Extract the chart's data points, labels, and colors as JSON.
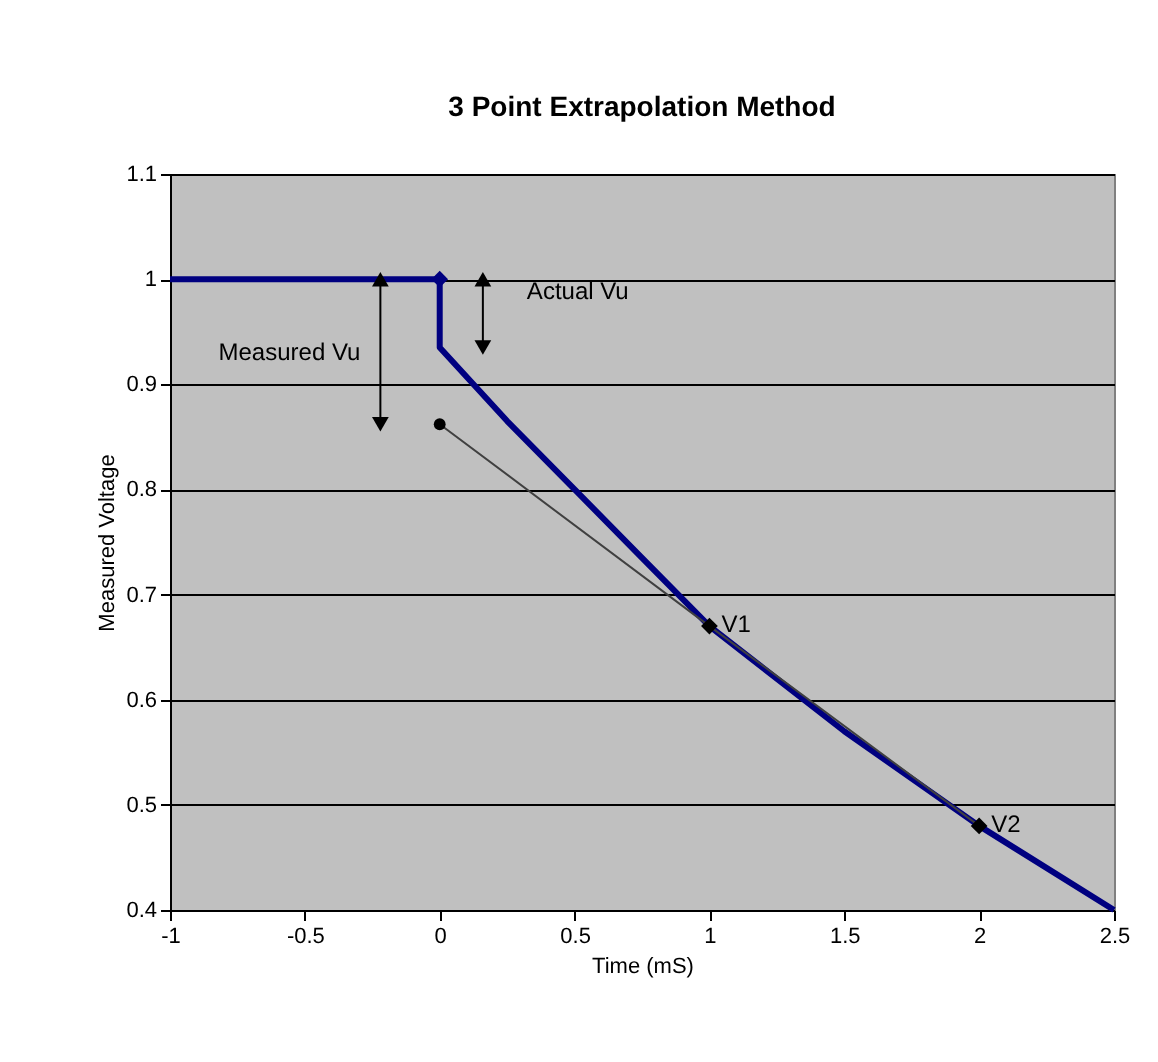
{
  "chart_data": {
    "type": "line",
    "title": "3 Point Extrapolation Method",
    "xlabel": "Time (mS)",
    "ylabel": "Measured Voltage",
    "xlim": [
      -1,
      2.5
    ],
    "xticks": [
      -1,
      -0.5,
      0,
      0.5,
      1,
      1.5,
      2,
      2.5
    ],
    "ylim": [
      0.4,
      1.1
    ],
    "yticks": [
      0.4,
      0.5,
      0.6,
      0.7,
      0.8,
      0.9,
      1,
      1.1
    ],
    "grid": "y",
    "series": [
      {
        "type": "line",
        "color": "#000080",
        "marker": "none",
        "x": [
          -1,
          0,
          0,
          0.25,
          0.5,
          0.75,
          1,
          1.5,
          2,
          2.5
        ],
        "values": [
          1,
          1,
          0.935,
          0.865,
          0.8,
          0.735,
          0.67,
          0.57,
          0.48,
          0.4
        ]
      },
      {
        "type": "scatter",
        "color": "#000080",
        "marker": "diamond",
        "x": [
          0
        ],
        "values": [
          1
        ]
      },
      {
        "type": "line",
        "color": "#404040",
        "marker": "none",
        "x": [
          0,
          1,
          2
        ],
        "values": [
          0.862,
          0.67,
          0.48
        ]
      },
      {
        "type": "scatter",
        "color": "#000000",
        "marker": "diamond",
        "x": [
          1,
          2
        ],
        "values": [
          0.67,
          0.48
        ]
      },
      {
        "type": "scatter",
        "color": "#000000",
        "marker": "circle",
        "x": [
          0
        ],
        "values": [
          0.862
        ]
      }
    ],
    "annotations": [
      {
        "text": "Measured Vu",
        "x": -0.22,
        "y": 0.862
      },
      {
        "text": "Actual Vu",
        "x": 0.16,
        "y": 0.935
      },
      {
        "text": "V1",
        "x": 1,
        "y": 0.67
      },
      {
        "text": "V2",
        "x": 2,
        "y": 0.48
      }
    ]
  }
}
